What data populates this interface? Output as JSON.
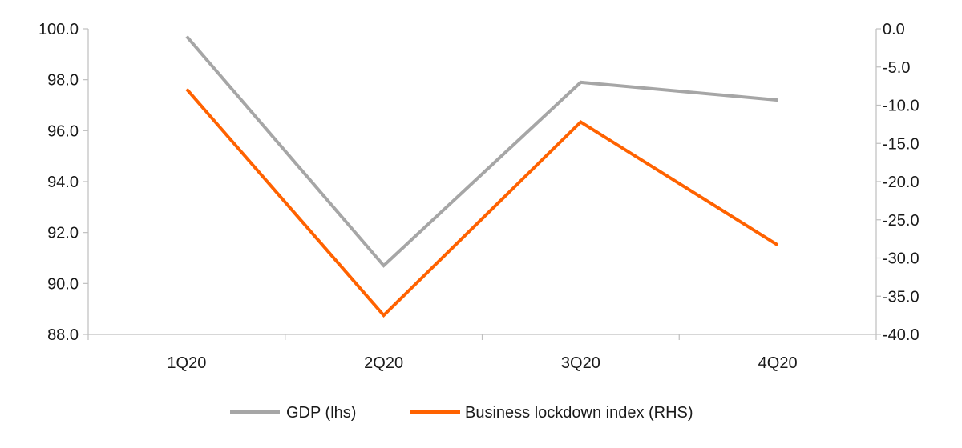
{
  "chart_data": {
    "type": "line",
    "categories": [
      "1Q20",
      "2Q20",
      "3Q20",
      "4Q20"
    ],
    "series": [
      {
        "name": "GDP (lhs)",
        "axis": "left",
        "color": "#a6a6a6",
        "values": [
          99.7,
          90.7,
          97.9,
          97.2
        ]
      },
      {
        "name": "Business lockdown index (RHS)",
        "axis": "right",
        "color": "#ff6200",
        "values": [
          -7.9,
          -37.5,
          -12.2,
          -28.3
        ]
      }
    ],
    "y_left": {
      "range": [
        88.0,
        100.0
      ],
      "ticks": [
        "100.0",
        "98.0",
        "96.0",
        "94.0",
        "92.0",
        "90.0",
        "88.0"
      ]
    },
    "y_right": {
      "range": [
        -40.0,
        0.0
      ],
      "ticks": [
        "0.0",
        "-5.0",
        "-10.0",
        "-15.0",
        "-20.0",
        "-25.0",
        "-30.0",
        "-35.0",
        "-40.0"
      ]
    },
    "legend_position": "bottom-center",
    "grid": false,
    "axis_color": "#bfbfbf"
  }
}
